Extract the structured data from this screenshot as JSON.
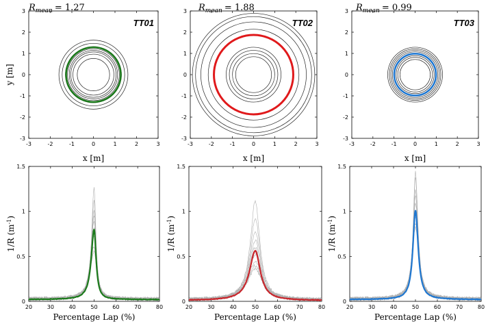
{
  "chart_data": [
    {
      "type": "scatter",
      "panel": "trajectory",
      "run": "TT01",
      "r_mean_label": "R",
      "r_mean_sub": "mean",
      "r_mean_value": "= 1.27",
      "xlabel": "x [m]",
      "ylabel": "y [m]",
      "xlim": [
        -3,
        3
      ],
      "ylim": [
        -3,
        3
      ],
      "xticks": [
        "-3",
        "-2",
        "-1",
        "0",
        "1",
        "2",
        "3"
      ],
      "yticks": [
        "-3",
        "-2",
        "-1",
        "0",
        "1",
        "2",
        "3"
      ],
      "trial_radii": [
        0.75,
        0.95,
        1.05,
        1.12,
        1.2,
        1.3,
        1.45,
        1.6
      ],
      "mean_radius": 1.27,
      "mean_color": "#1b7a1b",
      "trial_color": "#222222"
    },
    {
      "type": "scatter",
      "panel": "trajectory",
      "run": "TT02",
      "r_mean_label": "R",
      "r_mean_sub": "mean",
      "r_mean_value": "= 1.88",
      "xlabel": "x [m]",
      "ylabel": "",
      "xlim": [
        -3,
        3
      ],
      "ylim": [
        -3,
        3
      ],
      "xticks": [
        "-3",
        "-2",
        "-1",
        "0",
        "1",
        "2",
        "3"
      ],
      "yticks": [
        "-3",
        "-2",
        "-1",
        "0",
        "1",
        "2",
        "3"
      ],
      "trial_radii": [
        0.85,
        1.0,
        1.15,
        1.3,
        2.15,
        2.5,
        2.75,
        2.9
      ],
      "mean_radius": 1.88,
      "mean_color": "#e0191b",
      "trial_color": "#222222"
    },
    {
      "type": "scatter",
      "panel": "trajectory",
      "run": "TT03",
      "r_mean_label": "R",
      "r_mean_sub": "mean",
      "r_mean_value": "= 0.99",
      "xlabel": "x [m]",
      "ylabel": "",
      "xlim": [
        -3,
        3
      ],
      "ylim": [
        -3,
        3
      ],
      "xticks": [
        "-3",
        "-2",
        "-1",
        "0",
        "1",
        "2",
        "3"
      ],
      "yticks": [
        "-3",
        "-2",
        "-1",
        "0",
        "1",
        "2",
        "3"
      ],
      "trial_radii": [
        0.72,
        0.82,
        0.9,
        1.08,
        1.15,
        1.22,
        1.3
      ],
      "mean_radius": 0.99,
      "mean_color": "#1f77d0",
      "trial_color": "#222222"
    },
    {
      "type": "line",
      "panel": "curvature",
      "run": "TT01",
      "xlabel": "Percentage Lap (%)",
      "ylabel_main": "1/R (m",
      "ylabel_sup": "-1",
      "ylabel_end": ")",
      "xlim": [
        20,
        80
      ],
      "ylim": [
        0,
        1.5
      ],
      "xticks": [
        "20",
        "30",
        "40",
        "50",
        "60",
        "70",
        "80"
      ],
      "yticks": [
        "0",
        "0.5",
        "1",
        "1.5"
      ],
      "mean_color": "#1b7a1b",
      "trial_color": "#b0b0b0",
      "mean_curve": {
        "base": 0.02,
        "peak_x": 50,
        "peak": 0.8,
        "width_left": 1.6,
        "width_right": 1.1
      },
      "trial_peaks": [
        1.27,
        1.13,
        1.02,
        0.96,
        0.9,
        0.83,
        0.74,
        0.62,
        0.55
      ]
    },
    {
      "type": "line",
      "panel": "curvature",
      "run": "TT02",
      "xlabel": "Percentage Lap (%)",
      "ylabel_main": "1/R (m",
      "ylabel_sup": "-1",
      "ylabel_end": ")",
      "xlim": [
        20,
        80
      ],
      "ylim": [
        0,
        1.5
      ],
      "xticks": [
        "20",
        "30",
        "40",
        "50",
        "60",
        "70",
        "80"
      ],
      "yticks": [
        "0",
        "0.5",
        "1",
        "1.5"
      ],
      "mean_color": "#c8252b",
      "trial_color": "#b0b0b0",
      "mean_curve": {
        "base": 0.01,
        "peak_x": 50,
        "peak": 0.56,
        "width_left": 3.2,
        "width_right": 2.8
      },
      "trial_peaks": [
        1.12,
        0.92,
        0.78,
        0.68,
        0.6,
        0.52,
        0.45,
        0.4,
        0.36
      ]
    },
    {
      "type": "line",
      "panel": "curvature",
      "run": "TT03",
      "xlabel": "Percentage Lap (%)",
      "ylabel_main": "1/R (m",
      "ylabel_sup": "-1",
      "ylabel_end": ")",
      "xlim": [
        20,
        80
      ],
      "ylim": [
        0,
        1.5
      ],
      "xticks": [
        "20",
        "30",
        "40",
        "50",
        "60",
        "70",
        "80"
      ],
      "yticks": [
        "0",
        "0.5",
        "1",
        "1.5"
      ],
      "mean_color": "#1f77d0",
      "trial_color": "#b0b0b0",
      "mean_curve": {
        "base": 0.02,
        "peak_x": 50,
        "peak": 1.01,
        "width_left": 1.4,
        "width_right": 1.5
      },
      "trial_peaks": [
        1.45,
        1.38,
        1.25,
        1.18,
        1.1,
        1.02,
        0.95,
        0.88,
        0.82
      ]
    }
  ]
}
